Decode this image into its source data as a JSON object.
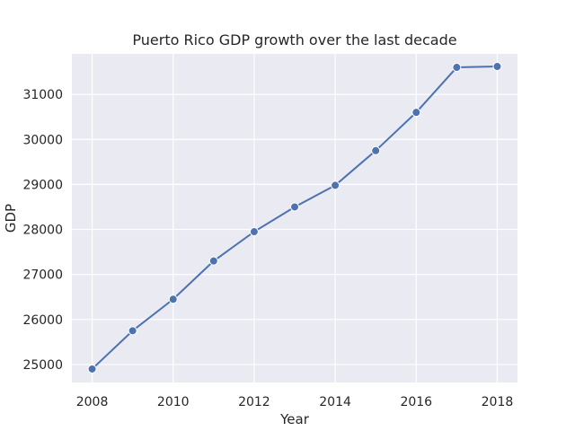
{
  "chart_data": {
    "type": "line",
    "title": "Puerto Rico GDP growth over the last decade",
    "xlabel": "Year",
    "ylabel": "GDP",
    "x": [
      2008,
      2009,
      2010,
      2011,
      2012,
      2013,
      2014,
      2015,
      2016,
      2017,
      2018
    ],
    "series": [
      {
        "values": [
          24900,
          25750,
          26450,
          27300,
          27950,
          28500,
          28980,
          29750,
          30600,
          31600,
          31620
        ]
      }
    ],
    "xlim": [
      2007.5,
      2018.5
    ],
    "ylim": [
      24600,
      31900
    ],
    "xticks": [
      2008,
      2010,
      2012,
      2014,
      2016,
      2018
    ],
    "yticks": [
      25000,
      26000,
      27000,
      28000,
      29000,
      30000,
      31000
    ],
    "grid": true,
    "colors": {
      "background": "#eaeaf2",
      "grid": "#ffffff",
      "line": "#4c72b0"
    }
  }
}
